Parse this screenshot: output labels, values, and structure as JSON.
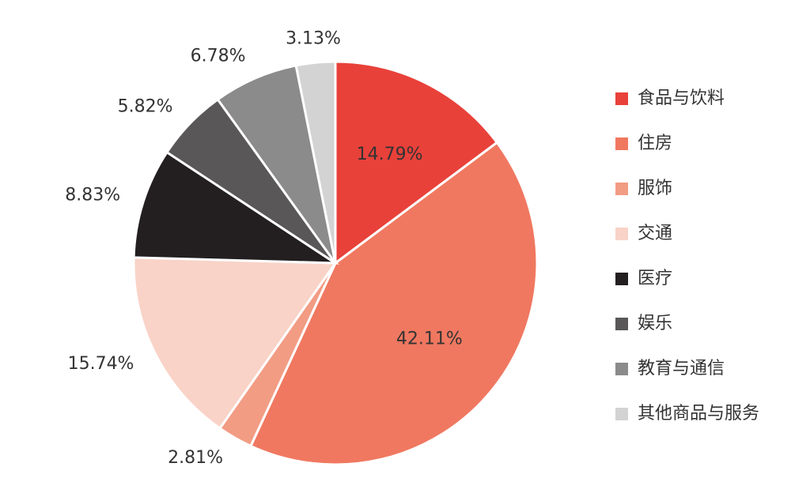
{
  "chart_data": {
    "type": "pie",
    "categories": [
      "食品与饮料",
      "住房",
      "服饰",
      "交通",
      "医疗",
      "娱乐",
      "教育与通信",
      "其他商品与服务"
    ],
    "values": [
      14.79,
      42.11,
      2.81,
      15.74,
      8.83,
      5.82,
      6.78,
      3.13
    ],
    "value_labels": [
      "14.79%",
      "42.11%",
      "2.81%",
      "15.74%",
      "8.83%",
      "5.82%",
      "6.78%",
      "3.13%"
    ],
    "colors": [
      "#e8413a",
      "#f07860",
      "#f29c84",
      "#f9d3c7",
      "#231f20",
      "#595757",
      "#8c8b8b",
      "#d3d3d3"
    ],
    "legend": "right"
  }
}
